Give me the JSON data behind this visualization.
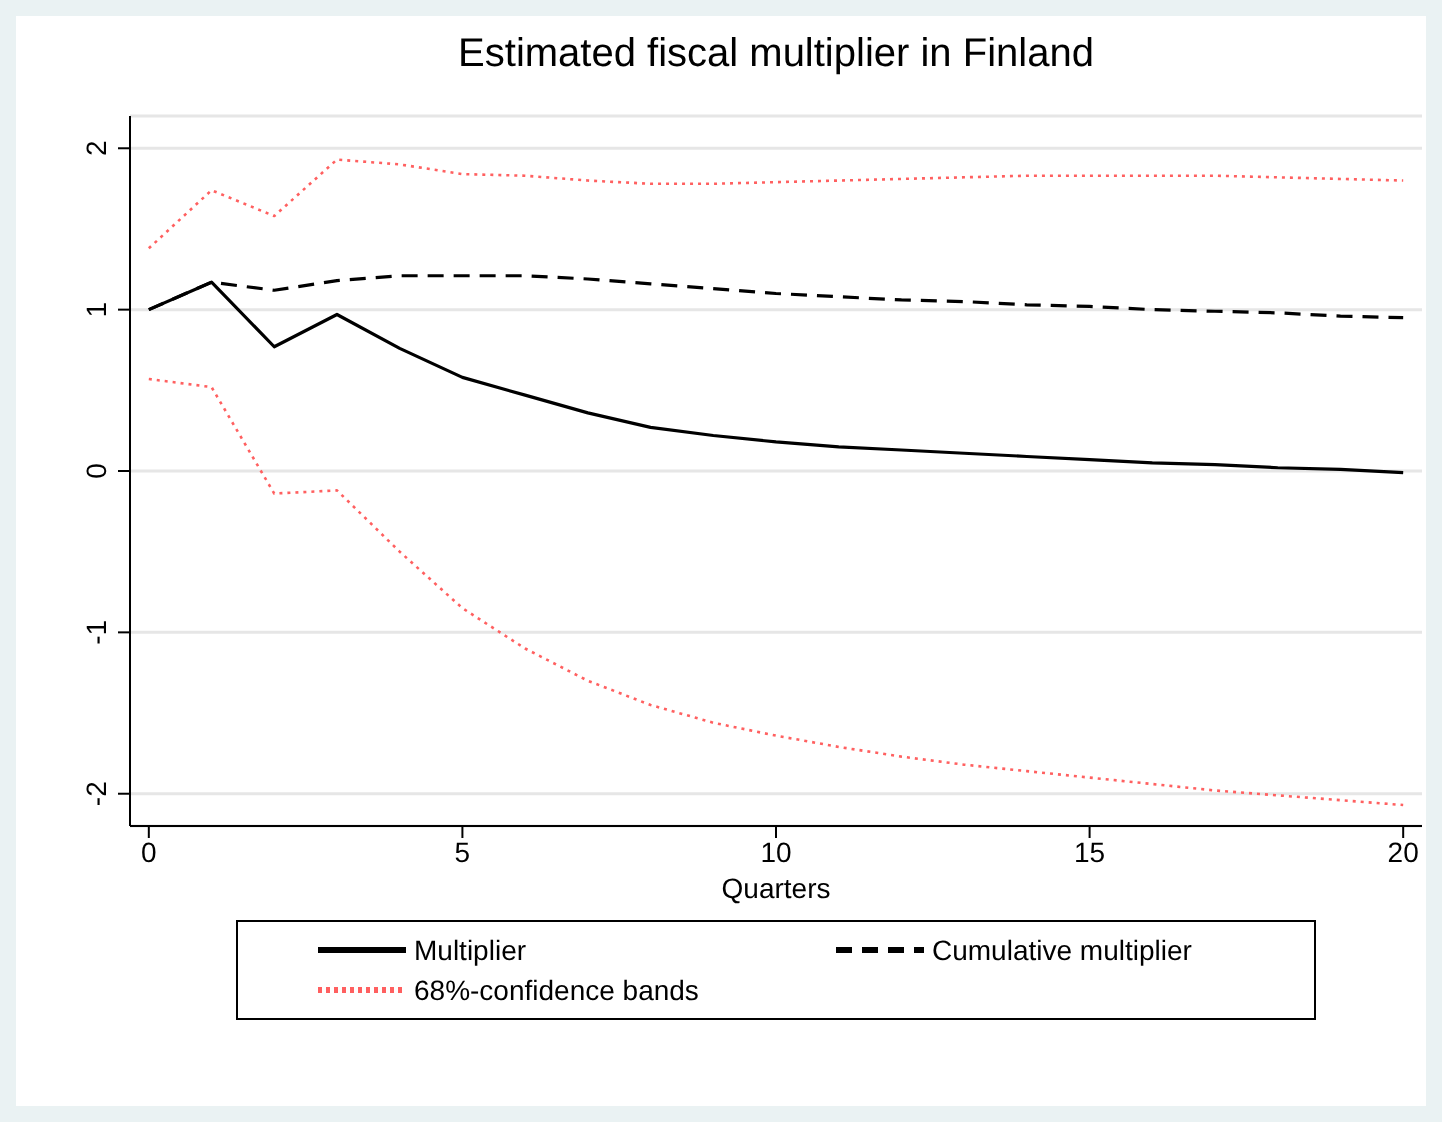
{
  "chart_data": {
    "type": "line",
    "title": "Estimated fiscal multiplier in Finland",
    "xlabel": "Quarters",
    "x": [
      0,
      1,
      2,
      3,
      4,
      5,
      6,
      7,
      8,
      9,
      10,
      11,
      12,
      13,
      14,
      15,
      16,
      17,
      18,
      19,
      20
    ],
    "series": [
      {
        "name": "Multiplier",
        "color": "#000000",
        "line_style": "solid",
        "values": [
          1.0,
          1.17,
          0.77,
          0.97,
          0.76,
          0.58,
          0.47,
          0.36,
          0.27,
          0.22,
          0.18,
          0.15,
          0.13,
          0.11,
          0.09,
          0.07,
          0.05,
          0.04,
          0.02,
          0.01,
          -0.01
        ]
      },
      {
        "name": "Cumulative multiplier",
        "color": "#000000",
        "line_style": "dashed",
        "values": [
          1.0,
          1.17,
          1.12,
          1.18,
          1.21,
          1.21,
          1.21,
          1.19,
          1.16,
          1.13,
          1.1,
          1.08,
          1.06,
          1.05,
          1.03,
          1.02,
          1.0,
          0.99,
          0.98,
          0.96,
          0.95
        ]
      },
      {
        "name": "68%-confidence bands",
        "color": "#ff6060",
        "line_style": "dotted",
        "values": [
          1.38,
          1.74,
          1.58,
          1.93,
          1.9,
          1.84,
          1.83,
          1.8,
          1.78,
          1.78,
          1.79,
          1.8,
          1.81,
          1.82,
          1.83,
          1.83,
          1.83,
          1.83,
          1.82,
          1.81,
          1.8
        ]
      },
      {
        "color": "#ff6060",
        "line_style": "dotted",
        "values": [
          0.57,
          0.52,
          -0.14,
          -0.12,
          -0.5,
          -0.85,
          -1.1,
          -1.3,
          -1.45,
          -1.56,
          -1.64,
          -1.71,
          -1.77,
          -1.82,
          -1.86,
          -1.9,
          -1.94,
          -1.98,
          -2.01,
          -2.04,
          -2.07
        ]
      }
    ],
    "xlim": [
      -0.3,
      20.3
    ],
    "xticks": [
      0,
      5,
      10,
      15,
      20
    ],
    "ylim": [
      -2.2,
      2.2
    ],
    "yticks": [
      -2,
      -1,
      0,
      1,
      2
    ],
    "grid": "y",
    "legend": "bottom",
    "marker": "none"
  }
}
